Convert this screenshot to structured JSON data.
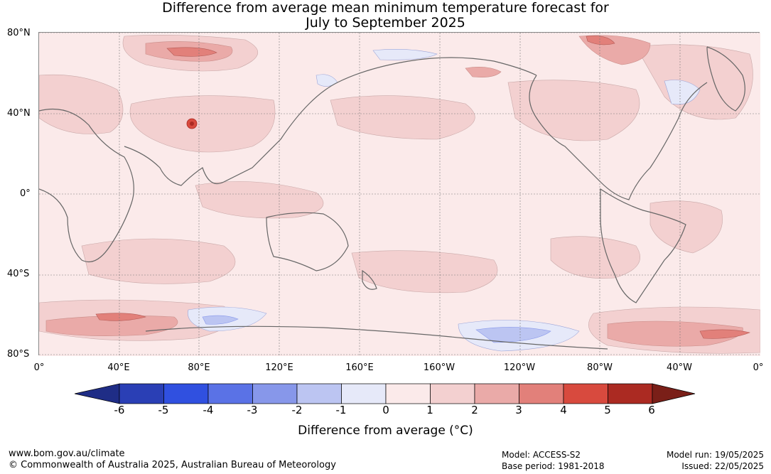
{
  "title_line1": "Difference from average mean minimum temperature forecast for",
  "title_line2": "July to September 2025",
  "lat_labels": [
    "80°N",
    "40°N",
    "0°",
    "40°S",
    "80°S"
  ],
  "lon_labels": [
    "0°",
    "40°E",
    "80°E",
    "120°E",
    "160°E",
    "160°W",
    "120°W",
    "80°W",
    "40°W",
    "0°"
  ],
  "colorbar": {
    "ticks": [
      "-6",
      "-5",
      "-4",
      "-3",
      "-2",
      "-1",
      "0",
      "1",
      "2",
      "3",
      "4",
      "5",
      "6"
    ],
    "colors": [
      "#1f2d86",
      "#2a3fb5",
      "#3050e0",
      "#5a72e6",
      "#8797ea",
      "#bcc5f2",
      "#e6e9f9",
      "#fbeaea",
      "#f3d0d0",
      "#eaaaa8",
      "#e2807a",
      "#d84a3e",
      "#ab2a22",
      "#7a1f18"
    ],
    "title": "Difference from average (°C)"
  },
  "footer": {
    "url": "www.bom.gov.au/climate",
    "copyright": "© Commonwealth of Australia 2025, Australian Bureau of Meteorology",
    "model": "Model: ACCESS-S2",
    "base_period": "Base period: 1981-2018",
    "model_run": "Model run: 19/05/2025",
    "issued": "Issued: 22/05/2025"
  }
}
